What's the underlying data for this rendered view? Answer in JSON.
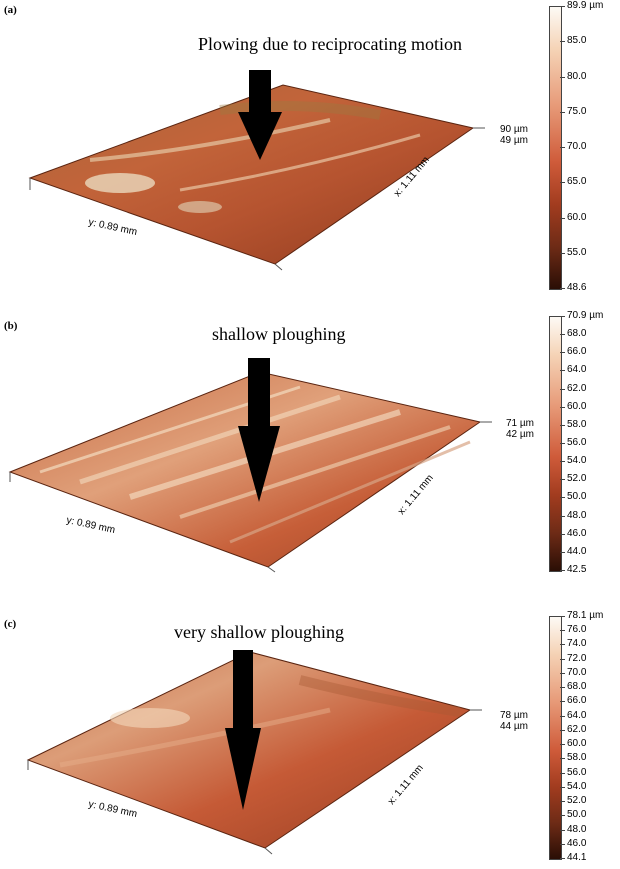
{
  "panels": [
    {
      "label": "(a)",
      "title": "Plowing due to reciprocating motion",
      "y_axis": "y: 0.89 mm",
      "x_axis": "x: 1.11 mm",
      "z_max": "90 µm",
      "z_min": "49 µm",
      "scale_ticks": [
        "89.9 µm",
        "85.0",
        "80.0",
        "75.0",
        "70.0",
        "65.0",
        "60.0",
        "55.0",
        "48.6"
      ]
    },
    {
      "label": "(b)",
      "title": "shallow ploughing",
      "y_axis": "y: 0.89 mm",
      "x_axis": "x: 1.11 mm",
      "z_max": "71 µm",
      "z_min": "42 µm",
      "scale_ticks": [
        "70.9 µm",
        "68.0",
        "66.0",
        "64.0",
        "62.0",
        "60.0",
        "58.0",
        "56.0",
        "54.0",
        "52.0",
        "50.0",
        "48.0",
        "46.0",
        "44.0",
        "42.5"
      ]
    },
    {
      "label": "(c)",
      "title": "very shallow ploughing",
      "y_axis": "y: 0.89 mm",
      "x_axis": "x: 1.11 mm",
      "z_max": "78 µm",
      "z_min": "44 µm",
      "scale_ticks": [
        "78.1 µm",
        "76.0",
        "74.0",
        "72.0",
        "70.0",
        "68.0",
        "66.0",
        "64.0",
        "62.0",
        "60.0",
        "58.0",
        "56.0",
        "54.0",
        "52.0",
        "50.0",
        "48.0",
        "46.0",
        "44.1"
      ]
    }
  ],
  "colors": {
    "surface_light": "#f3d7b4",
    "surface_mid": "#cf6a40",
    "surface_dark": "#6b2a14",
    "arrow": "#000000"
  }
}
